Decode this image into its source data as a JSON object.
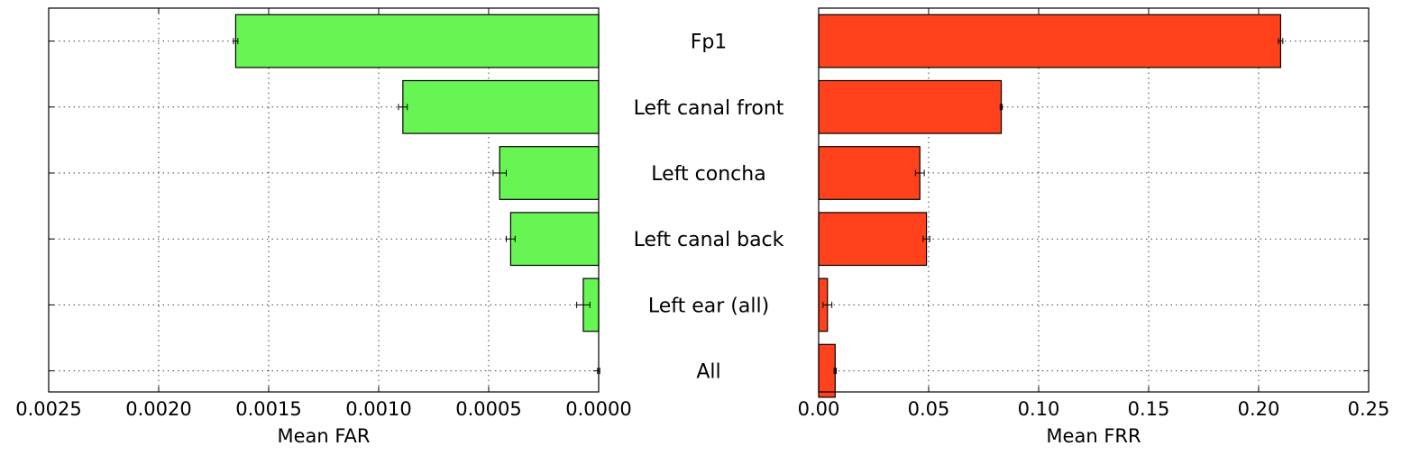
{
  "chart_data": {
    "type": "bar",
    "orientation": "horizontal",
    "categories": [
      "Fp1",
      "Left canal front",
      "Left concha",
      "Left canal back",
      "Left ear (all)",
      "All"
    ],
    "panels": [
      {
        "xlabel": "Mean FAR",
        "xlim": [
          0.0025,
          0.0
        ],
        "inverted": true,
        "ticks": [
          0.0025,
          0.002,
          0.0015,
          0.001,
          0.0005,
          0.0
        ],
        "tick_labels": [
          "0.0025",
          "0.0020",
          "0.0015",
          "0.0010",
          "0.0005",
          "0.0000"
        ],
        "color": "#66f552",
        "values": [
          0.00165,
          0.00089,
          0.00045,
          0.0004,
          7e-05,
          0.0
        ],
        "errors": [
          1e-05,
          2e-05,
          3e-05,
          2e-05,
          3e-05,
          5e-06
        ],
        "grid": true
      },
      {
        "xlabel": "Mean FRR",
        "xlim": [
          0.0,
          0.25
        ],
        "inverted": false,
        "ticks": [
          0.0,
          0.05,
          0.1,
          0.15,
          0.2,
          0.25
        ],
        "tick_labels": [
          "0.00",
          "0.05",
          "0.10",
          "0.15",
          "0.20",
          "0.25"
        ],
        "color": "#ff421c",
        "values": [
          0.21,
          0.083,
          0.046,
          0.049,
          0.004,
          0.0075
        ],
        "errors": [
          0.001,
          0.0005,
          0.002,
          0.0015,
          0.002,
          0.0005
        ],
        "grid": true
      }
    ]
  }
}
